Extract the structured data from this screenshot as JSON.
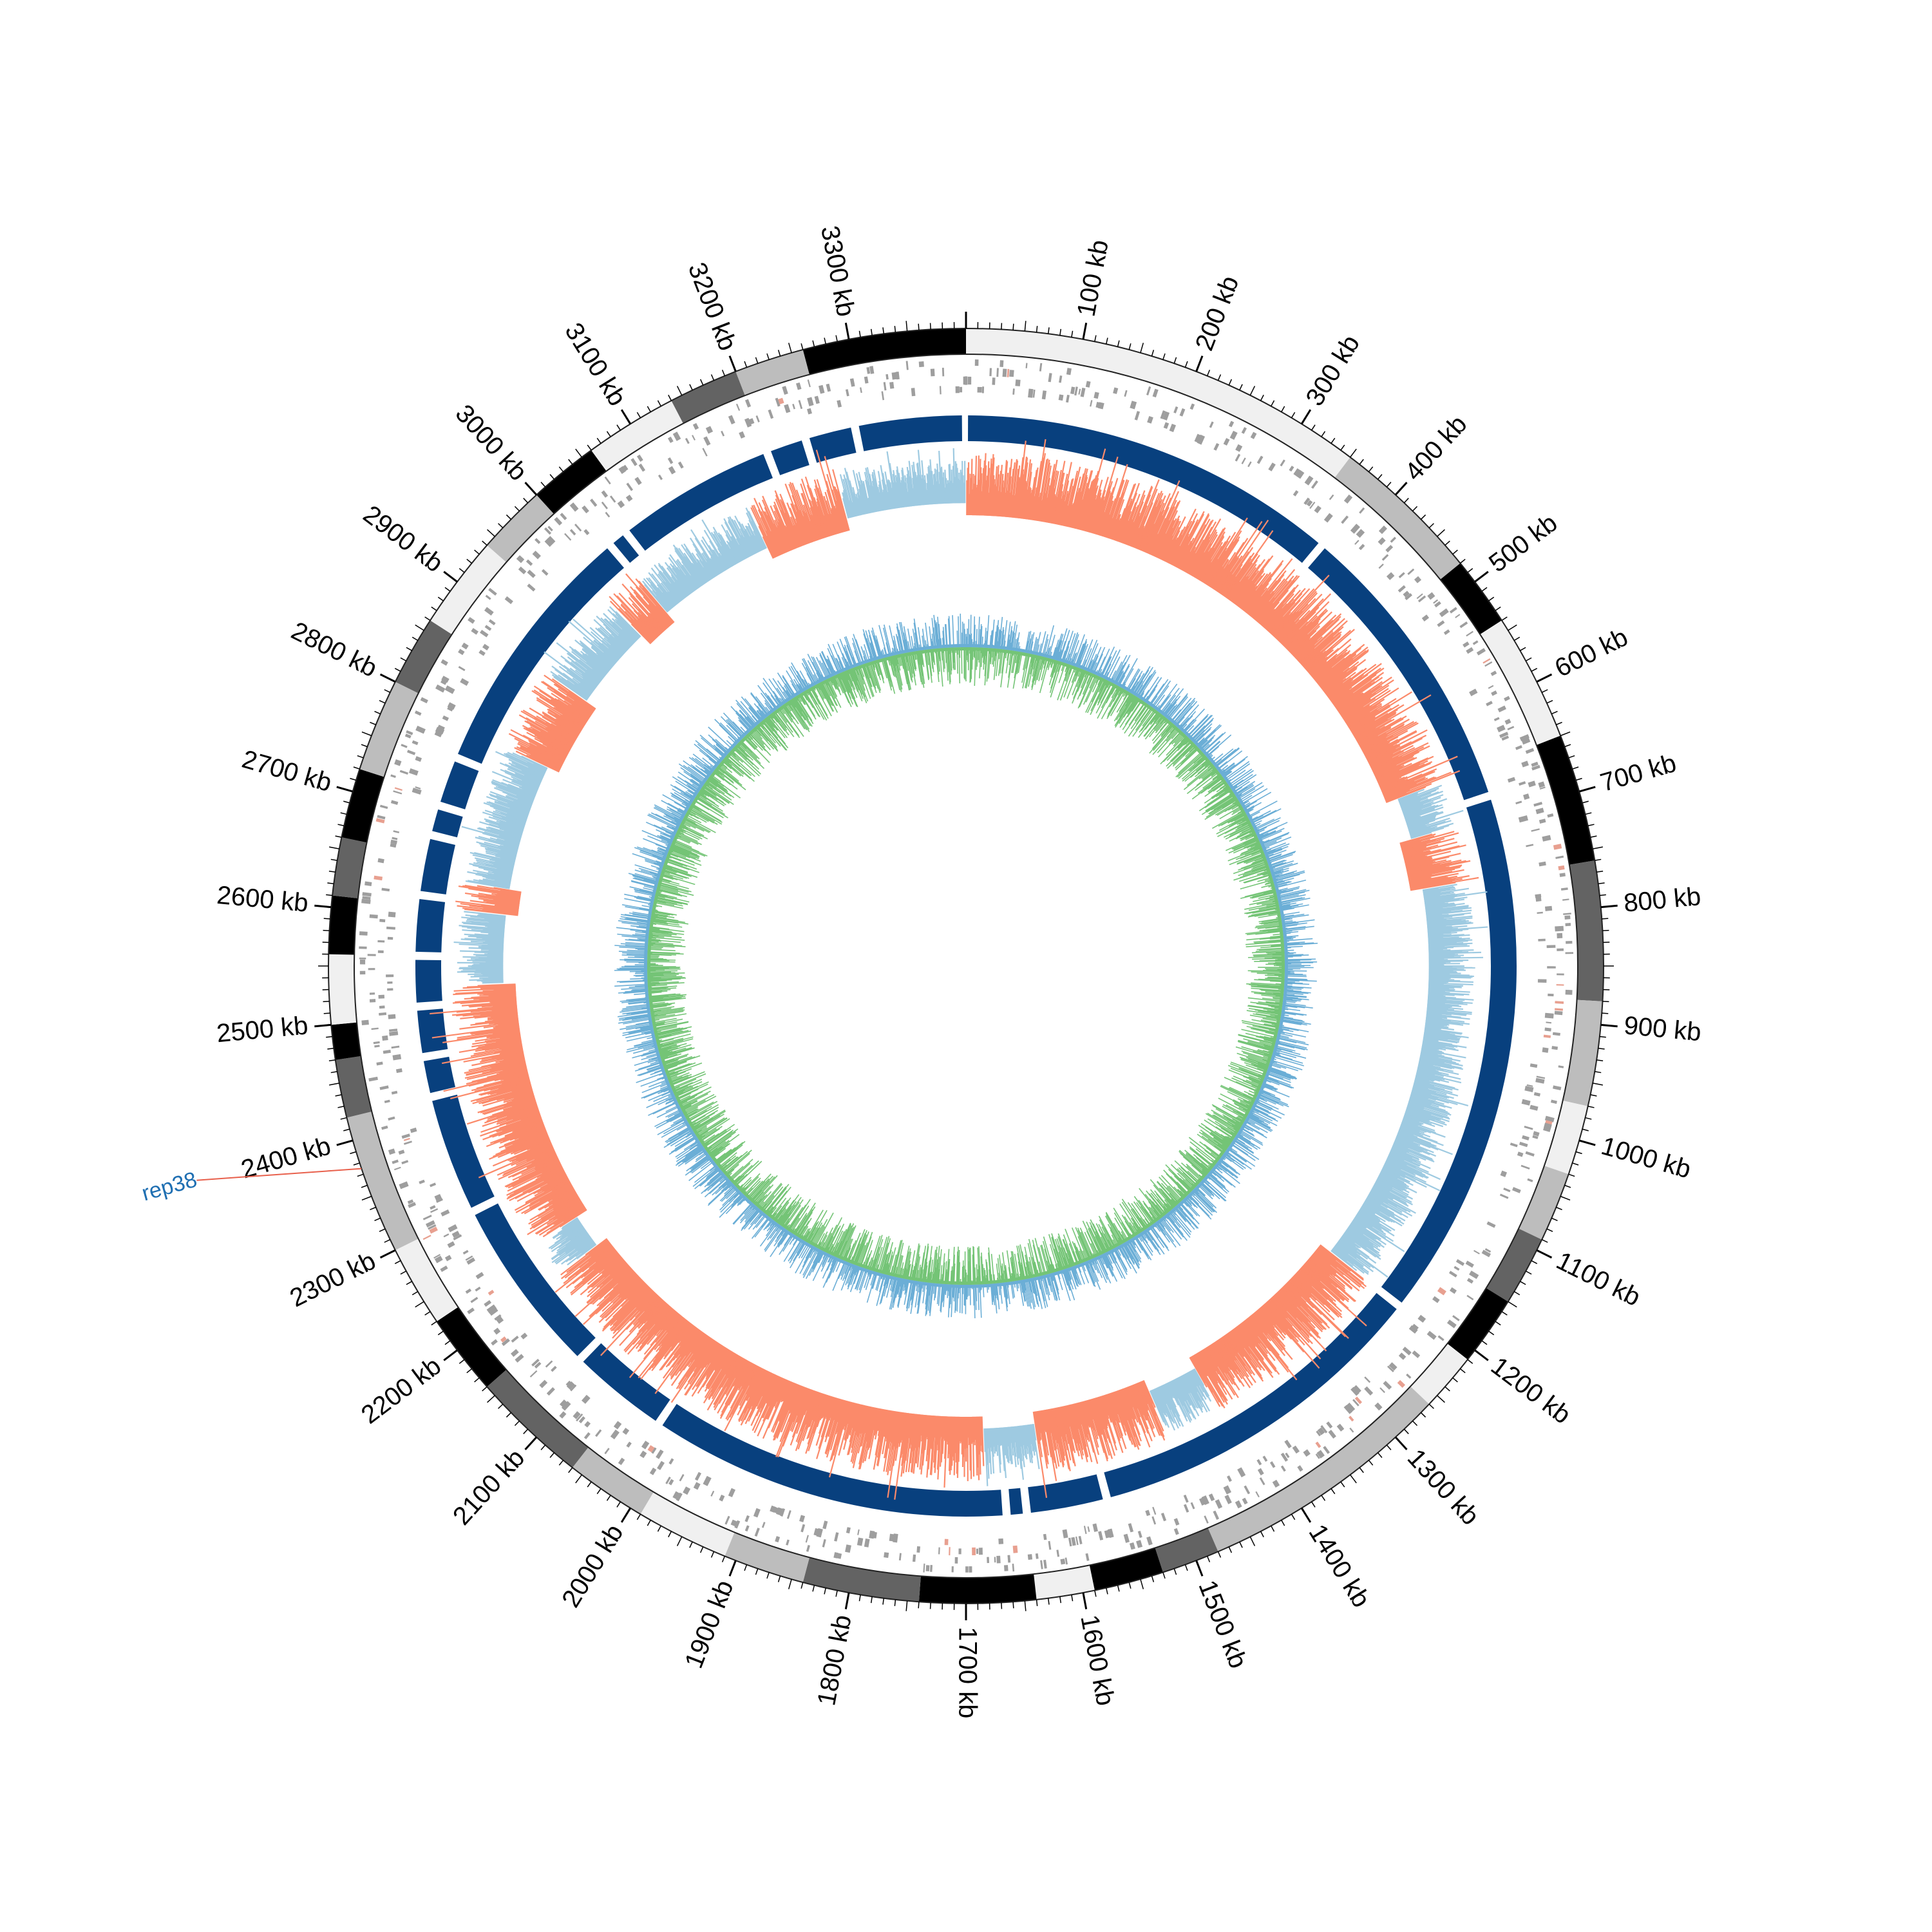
{
  "chart_data": {
    "type": "circos",
    "genome_length_kb": 3400,
    "tick_unit": "kb",
    "tick_labels": [
      "100 kb",
      "200 kb",
      "300 kb",
      "400 kb",
      "500 kb",
      "600 kb",
      "700 kb",
      "800 kb",
      "900 kb",
      "1000 kb",
      "1100 kb",
      "1200 kb",
      "1300 kb",
      "1400 kb",
      "1500 kb",
      "1600 kb",
      "1700 kb",
      "1800 kb",
      "1900 kb",
      "2000 kb",
      "2100 kb",
      "2200 kb",
      "2300 kb",
      "2400 kb",
      "2500 kb",
      "2600 kb",
      "2700 kb",
      "2800 kb",
      "2900 kb",
      "3000 kb",
      "3100 kb",
      "3200 kb",
      "3300 kb"
    ],
    "tick_values_kb": [
      100,
      200,
      300,
      400,
      500,
      600,
      700,
      800,
      900,
      1000,
      1100,
      1200,
      1300,
      1400,
      1500,
      1600,
      1700,
      1800,
      1900,
      2000,
      2100,
      2200,
      2300,
      2400,
      2500,
      2600,
      2700,
      2800,
      2900,
      3000,
      3100,
      3200,
      3300
    ],
    "annotations": [
      {
        "label": "rep38",
        "position_kb": 2375,
        "color": "#1f6fb2",
        "line_color": "#e8604c"
      }
    ],
    "colors": {
      "band_shades": [
        "#f0f0f0",
        "#bdbdbd",
        "#636363",
        "#000000"
      ],
      "gene_marks": "#9e9e9e",
      "gene_marks_alt": "#e8a090",
      "blocks": "#08407e",
      "gc_skew_positive": "#fb8a6a",
      "gc_skew_negative": "#9ecae1",
      "inner_blue": "#6baed6",
      "inner_green": "#74c476"
    },
    "band_track": [
      {
        "start": 0,
        "end": 350,
        "shade": 0
      },
      {
        "start": 350,
        "end": 480,
        "shade": 1
      },
      {
        "start": 480,
        "end": 540,
        "shade": 3
      },
      {
        "start": 540,
        "end": 650,
        "shade": 0
      },
      {
        "start": 650,
        "end": 760,
        "shade": 3
      },
      {
        "start": 760,
        "end": 880,
        "shade": 2
      },
      {
        "start": 880,
        "end": 970,
        "shade": 1
      },
      {
        "start": 970,
        "end": 1030,
        "shade": 0
      },
      {
        "start": 1030,
        "end": 1090,
        "shade": 1
      },
      {
        "start": 1090,
        "end": 1150,
        "shade": 2
      },
      {
        "start": 1150,
        "end": 1210,
        "shade": 3
      },
      {
        "start": 1210,
        "end": 1260,
        "shade": 0
      },
      {
        "start": 1260,
        "end": 1480,
        "shade": 1
      },
      {
        "start": 1480,
        "end": 1530,
        "shade": 2
      },
      {
        "start": 1530,
        "end": 1590,
        "shade": 3
      },
      {
        "start": 1590,
        "end": 1640,
        "shade": 0
      },
      {
        "start": 1640,
        "end": 1740,
        "shade": 3
      },
      {
        "start": 1740,
        "end": 1840,
        "shade": 2
      },
      {
        "start": 1840,
        "end": 1910,
        "shade": 1
      },
      {
        "start": 1910,
        "end": 1990,
        "shade": 0
      },
      {
        "start": 1990,
        "end": 2060,
        "shade": 1
      },
      {
        "start": 2060,
        "end": 2160,
        "shade": 2
      },
      {
        "start": 2160,
        "end": 2230,
        "shade": 3
      },
      {
        "start": 2230,
        "end": 2300,
        "shade": 0
      },
      {
        "start": 2300,
        "end": 2420,
        "shade": 1
      },
      {
        "start": 2420,
        "end": 2470,
        "shade": 2
      },
      {
        "start": 2470,
        "end": 2500,
        "shade": 3
      },
      {
        "start": 2500,
        "end": 2560,
        "shade": 0
      },
      {
        "start": 2560,
        "end": 2610,
        "shade": 3
      },
      {
        "start": 2610,
        "end": 2660,
        "shade": 2
      },
      {
        "start": 2660,
        "end": 2720,
        "shade": 3
      },
      {
        "start": 2720,
        "end": 2800,
        "shade": 1
      },
      {
        "start": 2800,
        "end": 2860,
        "shade": 2
      },
      {
        "start": 2860,
        "end": 2940,
        "shade": 0
      },
      {
        "start": 2940,
        "end": 3000,
        "shade": 1
      },
      {
        "start": 3000,
        "end": 3060,
        "shade": 3
      },
      {
        "start": 3060,
        "end": 3140,
        "shade": 0
      },
      {
        "start": 3140,
        "end": 3200,
        "shade": 2
      },
      {
        "start": 3200,
        "end": 3260,
        "shade": 1
      },
      {
        "start": 3260,
        "end": 3400,
        "shade": 3
      }
    ],
    "block_gaps_kb": [
      380,
      680,
      1210,
      1560,
      1640,
      1660,
      2020,
      2120,
      2300,
      2420,
      2460,
      2510,
      2560,
      2620,
      2680,
      2710,
      2760,
      3020,
      3040,
      3200,
      3240,
      3290
    ],
    "gc_skew_segments": [
      {
        "start": 0,
        "end": 650,
        "sign": "positive"
      },
      {
        "start": 650,
        "end": 700,
        "sign": "negative"
      },
      {
        "start": 700,
        "end": 760,
        "sign": "positive"
      },
      {
        "start": 760,
        "end": 1210,
        "sign": "negative"
      },
      {
        "start": 1210,
        "end": 1420,
        "sign": "positive"
      },
      {
        "start": 1420,
        "end": 1480,
        "sign": "negative"
      },
      {
        "start": 1480,
        "end": 1620,
        "sign": "positive"
      },
      {
        "start": 1620,
        "end": 1680,
        "sign": "negative"
      },
      {
        "start": 1680,
        "end": 2200,
        "sign": "positive"
      },
      {
        "start": 2200,
        "end": 2240,
        "sign": "negative"
      },
      {
        "start": 2240,
        "end": 2530,
        "sign": "positive"
      },
      {
        "start": 2530,
        "end": 2610,
        "sign": "negative"
      },
      {
        "start": 2610,
        "end": 2640,
        "sign": "positive"
      },
      {
        "start": 2640,
        "end": 2790,
        "sign": "negative"
      },
      {
        "start": 2790,
        "end": 2880,
        "sign": "positive"
      },
      {
        "start": 2880,
        "end": 2980,
        "sign": "negative"
      },
      {
        "start": 2980,
        "end": 3020,
        "sign": "positive"
      },
      {
        "start": 3020,
        "end": 3160,
        "sign": "negative"
      },
      {
        "start": 3160,
        "end": 3260,
        "sign": "positive"
      },
      {
        "start": 3260,
        "end": 3400,
        "sign": "negative"
      }
    ]
  }
}
